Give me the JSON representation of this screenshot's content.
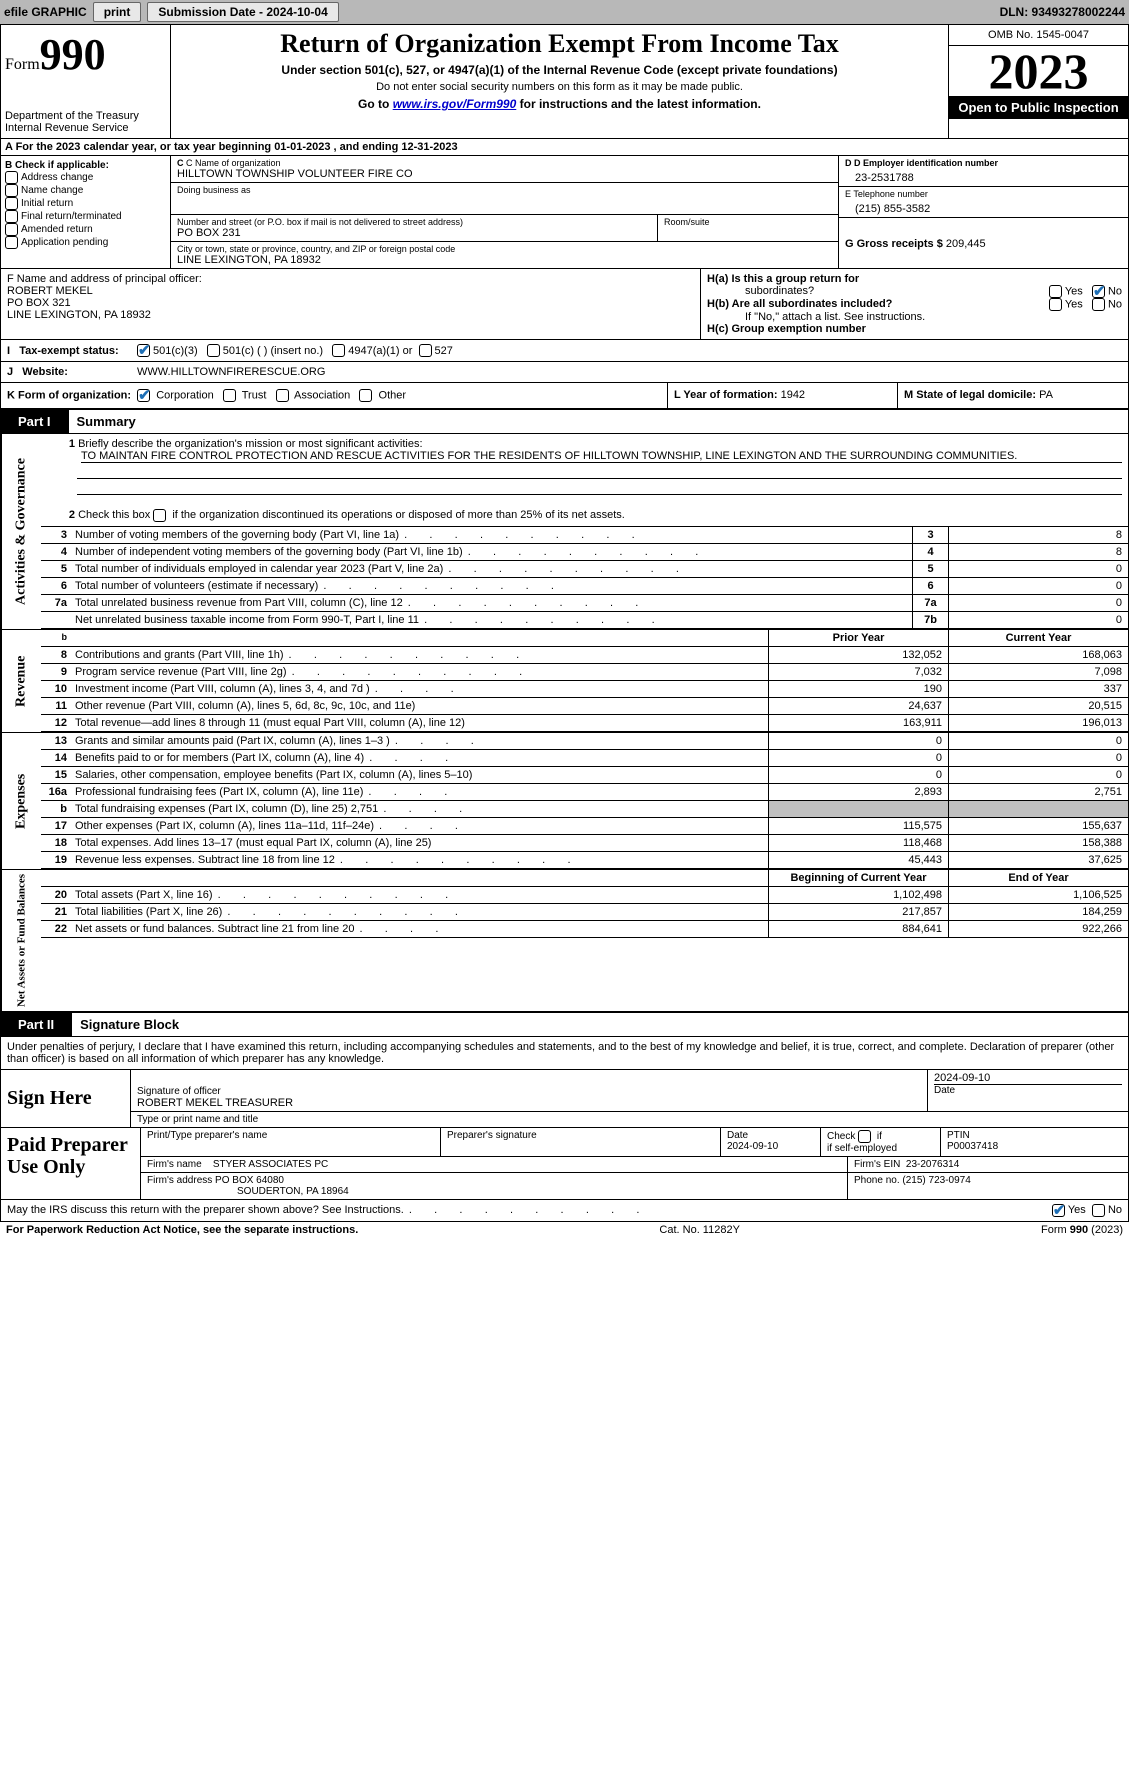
{
  "topbar": {
    "efile": "efile GRAPHIC",
    "print": "print",
    "sub_date_label": "Submission Date - 2024-10-04",
    "dln_label": "DLN: 93493278002244"
  },
  "header": {
    "form_prefix": "Form",
    "form_number": "990",
    "dept": "Department of the Treasury",
    "irs": "Internal Revenue Service",
    "title": "Return of Organization Exempt From Income Tax",
    "subtitle": "Under section 501(c), 527, or 4947(a)(1) of the Internal Revenue Code (except private foundations)",
    "ssn_note": "Do not enter social security numbers on this form as it may be made public.",
    "goto_prefix": "Go to ",
    "goto_link": "www.irs.gov/Form990",
    "goto_suffix": " for instructions and the latest information.",
    "omb": "OMB No. 1545-0047",
    "year": "2023",
    "open": "Open to Public Inspection"
  },
  "row_a": {
    "text": "A   For the 2023 calendar year, or tax year beginning 01-01-2023   , and ending 12-31-2023"
  },
  "box_b": {
    "label": "B Check if applicable:",
    "items": [
      "Address change",
      "Name change",
      "Initial return",
      "Final return/terminated",
      "Amended return",
      "Application pending"
    ]
  },
  "box_c": {
    "name_label": "C Name of organization",
    "name": "HILLTOWN TOWNSHIP VOLUNTEER FIRE CO",
    "dba_label": "Doing business as",
    "addr_label": "Number and street (or P.O. box if mail is not delivered to street address)",
    "room_label": "Room/suite",
    "addr": "PO BOX 231",
    "city_label": "City or town, state or province, country, and ZIP or foreign postal code",
    "city": "LINE LEXINGTON, PA  18932"
  },
  "box_d": {
    "ein_label": "D Employer identification number",
    "ein": "23-2531788",
    "phone_label": "E Telephone number",
    "phone": "(215) 855-3582",
    "gross_label": "G Gross receipts $",
    "gross": "209,445"
  },
  "box_f": {
    "label": "F  Name and address of principal officer:",
    "name": "ROBERT MEKEL",
    "addr1": "PO BOX 321",
    "addr2": "LINE LEXINGTON, PA  18932"
  },
  "box_h": {
    "ha_label": "H(a)  Is this a group return for",
    "ha_sub": "subordinates?",
    "hb_label": "H(b)  Are all subordinates included?",
    "hb_note": "If \"No,\" attach a list. See instructions.",
    "hc_label": "H(c)  Group exemption number",
    "yes": "Yes",
    "no": "No"
  },
  "row_i": {
    "label": "Tax-exempt status:",
    "opt1": "501(c)(3)",
    "opt2": "501(c) (  ) (insert no.)",
    "opt3": "4947(a)(1) or",
    "opt4": "527"
  },
  "row_j": {
    "label": "Website:",
    "value": "WWW.HILLTOWNFIRERESCUE.ORG"
  },
  "row_klm": {
    "k_label": "K Form of organization:",
    "k_opts": [
      "Corporation",
      "Trust",
      "Association",
      "Other"
    ],
    "l_label": "L Year of formation:",
    "l_value": "1942",
    "m_label": "M State of legal domicile:",
    "m_value": "PA"
  },
  "part1": {
    "tag": "Part I",
    "title": "Summary",
    "mission_label": "Briefly describe the organization's mission or most significant activities:",
    "mission_text": "TO MAINTAN FIRE CONTROL PROTECTION AND RESCUE ACTIVITIES FOR THE RESIDENTS OF HILLTOWN TOWNSHIP, LINE LEXINGTON AND THE SURROUNDING COMMUNITIES.",
    "line2": "Check this box       if the organization discontinued its operations or disposed of more than 25% of its net assets.",
    "lines_top": [
      {
        "n": "3",
        "txt": "Number of voting members of the governing body (Part VI, line 1a)",
        "id": "3",
        "v": "8"
      },
      {
        "n": "4",
        "txt": "Number of independent voting members of the governing body (Part VI, line 1b)",
        "id": "4",
        "v": "8"
      },
      {
        "n": "5",
        "txt": "Total number of individuals employed in calendar year 2023 (Part V, line 2a)",
        "id": "5",
        "v": "0"
      },
      {
        "n": "6",
        "txt": "Total number of volunteers (estimate if necessary)",
        "id": "6",
        "v": "0"
      },
      {
        "n": "7a",
        "txt": "Total unrelated business revenue from Part VIII, column (C), line 12",
        "id": "7a",
        "v": "0"
      },
      {
        "n": "",
        "txt": "Net unrelated business taxable income from Form 990-T, Part I, line 11",
        "id": "7b",
        "v": "0"
      }
    ],
    "hdr_b": "b",
    "prior_label": "Prior Year",
    "current_label": "Current Year",
    "revenue": [
      {
        "n": "8",
        "txt": "Contributions and grants (Part VIII, line 1h)",
        "p": "132,052",
        "c": "168,063"
      },
      {
        "n": "9",
        "txt": "Program service revenue (Part VIII, line 2g)",
        "p": "7,032",
        "c": "7,098"
      },
      {
        "n": "10",
        "txt": "Investment income (Part VIII, column (A), lines 3, 4, and 7d )",
        "p": "190",
        "c": "337"
      },
      {
        "n": "11",
        "txt": "Other revenue (Part VIII, column (A), lines 5, 6d, 8c, 9c, 10c, and 11e)",
        "p": "24,637",
        "c": "20,515"
      },
      {
        "n": "12",
        "txt": "Total revenue—add lines 8 through 11 (must equal Part VIII, column (A), line 12)",
        "p": "163,911",
        "c": "196,013"
      }
    ],
    "expenses": [
      {
        "n": "13",
        "txt": "Grants and similar amounts paid (Part IX, column (A), lines 1–3 )",
        "p": "0",
        "c": "0"
      },
      {
        "n": "14",
        "txt": "Benefits paid to or for members (Part IX, column (A), line 4)",
        "p": "0",
        "c": "0"
      },
      {
        "n": "15",
        "txt": "Salaries, other compensation, employee benefits (Part IX, column (A), lines 5–10)",
        "p": "0",
        "c": "0"
      },
      {
        "n": "16a",
        "txt": "Professional fundraising fees (Part IX, column (A), line 11e)",
        "p": "2,893",
        "c": "2,751"
      },
      {
        "n": "b",
        "txt": "Total fundraising expenses (Part IX, column (D), line 25) 2,751",
        "p": "",
        "c": "",
        "shaded": true
      },
      {
        "n": "17",
        "txt": "Other expenses (Part IX, column (A), lines 11a–11d, 11f–24e)",
        "p": "115,575",
        "c": "155,637"
      },
      {
        "n": "18",
        "txt": "Total expenses. Add lines 13–17 (must equal Part IX, column (A), line 25)",
        "p": "118,468",
        "c": "158,388"
      },
      {
        "n": "19",
        "txt": "Revenue less expenses. Subtract line 18 from line 12",
        "p": "45,443",
        "c": "37,625"
      }
    ],
    "beg_label": "Beginning of Current Year",
    "end_label": "End of Year",
    "netassets": [
      {
        "n": "20",
        "txt": "Total assets (Part X, line 16)",
        "p": "1,102,498",
        "c": "1,106,525"
      },
      {
        "n": "21",
        "txt": "Total liabilities (Part X, line 26)",
        "p": "217,857",
        "c": "184,259"
      },
      {
        "n": "22",
        "txt": "Net assets or fund balances. Subtract line 21 from line 20",
        "p": "884,641",
        "c": "922,266"
      }
    ],
    "vtabs": {
      "gov": "Activities & Governance",
      "rev": "Revenue",
      "exp": "Expenses",
      "net": "Net Assets or Fund Balances"
    }
  },
  "part2": {
    "tag": "Part II",
    "title": "Signature Block",
    "decl": "Under penalties of perjury, I declare that I have examined this return, including accompanying schedules and statements, and to the best of my knowledge and belief, it is true, correct, and complete. Declaration of preparer (other than officer) is based on all information of which preparer has any knowledge.",
    "sign_here": "Sign Here",
    "sig_officer_label": "Signature of officer",
    "sig_officer": "ROBERT MEKEL TREASURER",
    "sig_type_label": "Type or print name and title",
    "sig_date_label": "Date",
    "sig_date": "2024-09-10",
    "paid_label": "Paid Preparer Use Only",
    "prep_name_label": "Print/Type preparer's name",
    "prep_sig_label": "Preparer's signature",
    "prep_date_label": "Date",
    "prep_date": "2024-09-10",
    "check_label": "Check",
    "self_emp": "if self-employed",
    "ptin_label": "PTIN",
    "ptin": "P00037418",
    "firm_name_label": "Firm's name",
    "firm_name": "STYER ASSOCIATES PC",
    "firm_ein_label": "Firm's EIN",
    "firm_ein": "23-2076314",
    "firm_addr_label": "Firm's address",
    "firm_addr1": "PO BOX 64080",
    "firm_addr2": "SOUDERTON, PA  18964",
    "firm_phone_label": "Phone no.",
    "firm_phone": "(215) 723-0974",
    "discuss": "May the IRS discuss this return with the preparer shown above? See Instructions."
  },
  "footer": {
    "left": "For Paperwork Reduction Act Notice, see the separate instructions.",
    "mid": "Cat. No. 11282Y",
    "right_prefix": "Form ",
    "right_bold": "990",
    "right_suffix": " (2023)"
  }
}
